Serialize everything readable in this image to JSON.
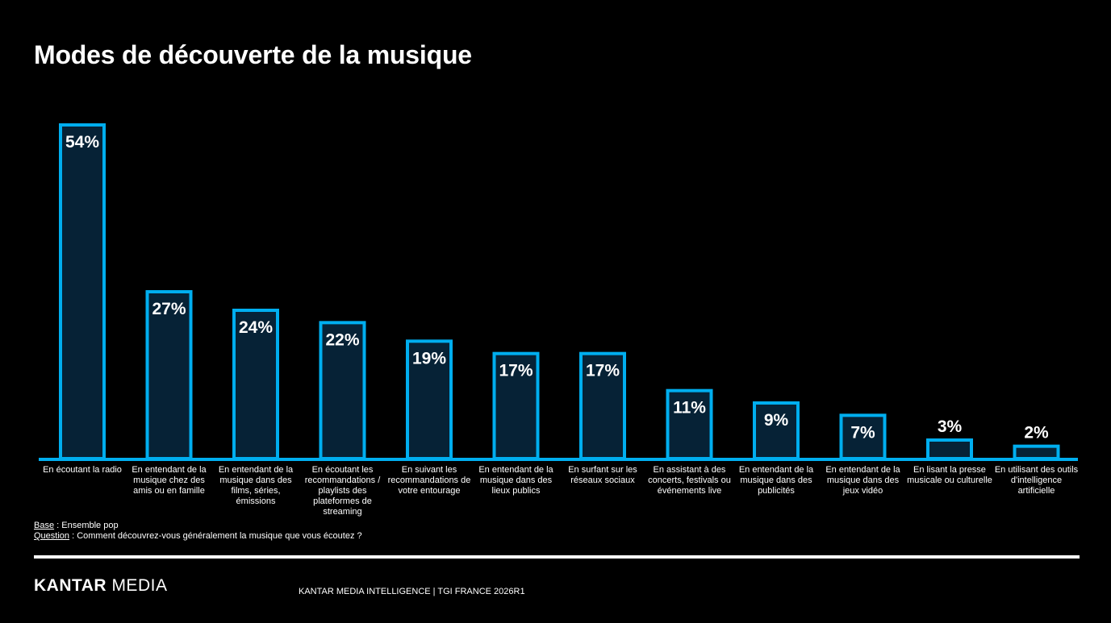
{
  "title": "Modes de découverte de la musique",
  "colors": {
    "background": "#000000",
    "bar_fill": "#062236",
    "bar_stroke": "#00aeef",
    "text": "#ffffff"
  },
  "chart_data": {
    "type": "bar",
    "categories": [
      "En écoutant la radio",
      "En entendant de la musique chez des amis ou en famille",
      "En entendant de la musique dans des films, séries, émissions",
      "En écoutant les recommandations / playlists des plateformes de streaming",
      "En suivant les recommandations de votre entourage",
      "En entendant de la musique dans des lieux publics",
      "En surfant sur les réseaux sociaux",
      "En assistant à des concerts, festivals ou événements live",
      "En entendant de la musique dans des publicités",
      "En entendant de la musique dans des jeux vidéo",
      "En lisant la presse musicale ou culturelle",
      "En utilisant des outils d'intelligence artificielle"
    ],
    "values": [
      54,
      27,
      24,
      22,
      19,
      17,
      17,
      11,
      9,
      7,
      3,
      2
    ],
    "value_labels": [
      "54%",
      "27%",
      "24%",
      "22%",
      "19%",
      "17%",
      "17%",
      "11%",
      "9%",
      "7%",
      "3%",
      "2%"
    ],
    "ylim": [
      0,
      54
    ],
    "grid": false,
    "legend": "none"
  },
  "notes": {
    "base_label": "Base",
    "base_text": " : Ensemble pop",
    "question_label": "Question",
    "question_text": " : Comment découvrez-vous généralement la musique que vous écoutez ?"
  },
  "logo": {
    "bold": "KANTAR",
    "regular": " MEDIA"
  },
  "footer": "KANTAR MEDIA INTELLIGENCE | TGI FRANCE 2026R1"
}
